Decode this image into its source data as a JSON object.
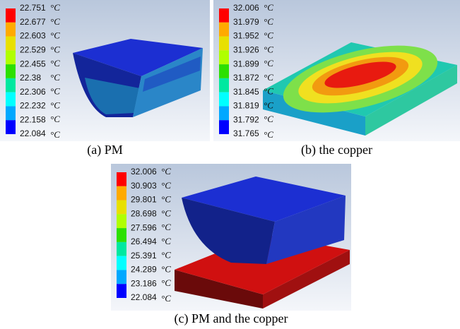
{
  "panels": [
    {
      "legend": [
        "22.751",
        "22.677",
        "22.603",
        "22.529",
        "22.455",
        "22.38",
        "22.306",
        "22.232",
        "22.158",
        "22.084"
      ],
      "unit": "°C",
      "caption": "(a) PM"
    },
    {
      "legend": [
        "32.006",
        "31.979",
        "31.952",
        "31.926",
        "31.899",
        "31.872",
        "31.845",
        "31.819",
        "31.792",
        "31.765"
      ],
      "unit": "°C",
      "caption": "(b) the copper"
    },
    {
      "legend": [
        "32.006",
        "30.903",
        "29.801",
        "28.698",
        "27.596",
        "26.494",
        "25.391",
        "24.289",
        "23.186",
        "22.084"
      ],
      "unit": "°C",
      "caption": "(c) PM and the copper"
    }
  ]
}
